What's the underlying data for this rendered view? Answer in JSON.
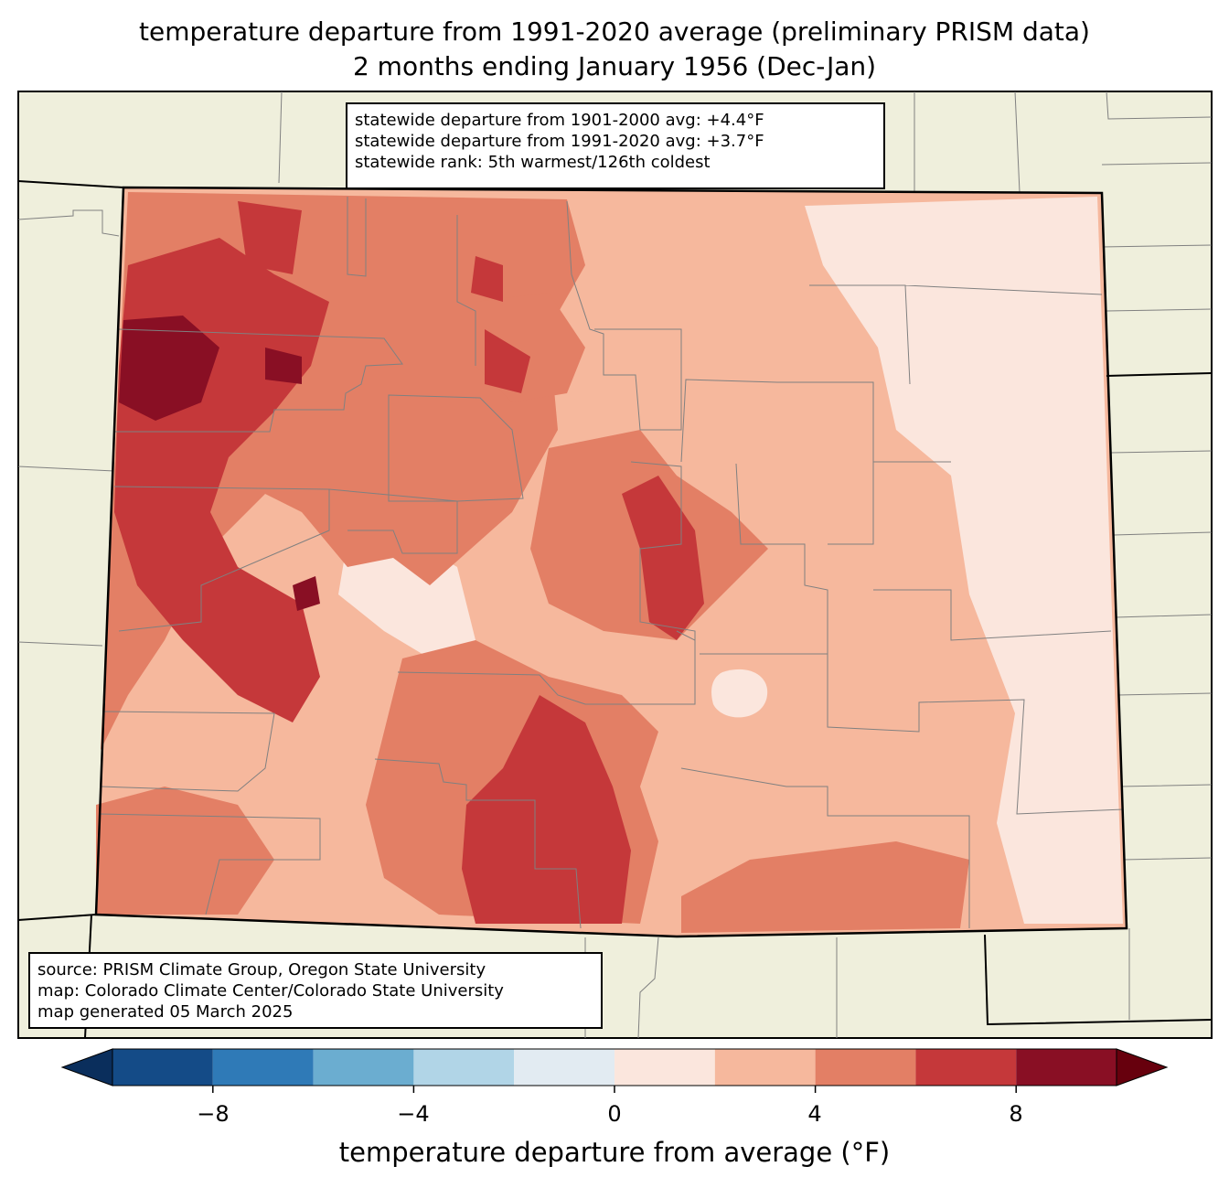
{
  "title_line1": "temperature departure from 1991-2020 average (preliminary PRISM data)",
  "title_line2": "2 months ending January 1956 (Dec-Jan)",
  "stats": {
    "line1": "statewide departure from 1901-2000 avg: +4.4°F",
    "line2": "statewide departure from 1991-2020 avg: +3.7°F",
    "line3": "statewide rank: 5th warmest/126th coldest"
  },
  "source": {
    "line1": "source: PRISM Climate Group, Oregon State University",
    "line2": "map: Colorado Climate Center/Colorado State University",
    "line3": "map generated 05 March 2025"
  },
  "colorbar": {
    "label": "temperature departure from average (°F)",
    "ticks": [
      "−8",
      "−4",
      "0",
      "4",
      "8"
    ],
    "tick_values": [
      -8,
      -4,
      0,
      4,
      8
    ],
    "bins": [
      {
        "from": -10,
        "to": -8,
        "color": "#144b87"
      },
      {
        "from": -8,
        "to": -6,
        "color": "#2f7ab7"
      },
      {
        "from": -6,
        "to": -4,
        "color": "#6badd0"
      },
      {
        "from": -4,
        "to": -2,
        "color": "#b1d5e7"
      },
      {
        "from": -2,
        "to": 0,
        "color": "#e2ebf2"
      },
      {
        "from": 0,
        "to": 2,
        "color": "#fbe6dd"
      },
      {
        "from": 2,
        "to": 4,
        "color": "#f6b89d"
      },
      {
        "from": 4,
        "to": 6,
        "color": "#e37f65"
      },
      {
        "from": 6,
        "to": 8,
        "color": "#c5383a"
      },
      {
        "from": 8,
        "to": 10,
        "color": "#890f24"
      }
    ],
    "under_color": "#0a2e5c",
    "over_color": "#67000d"
  },
  "colors": {
    "land": "#efefdc",
    "county_border": "#808080",
    "state_border": "#000000"
  }
}
